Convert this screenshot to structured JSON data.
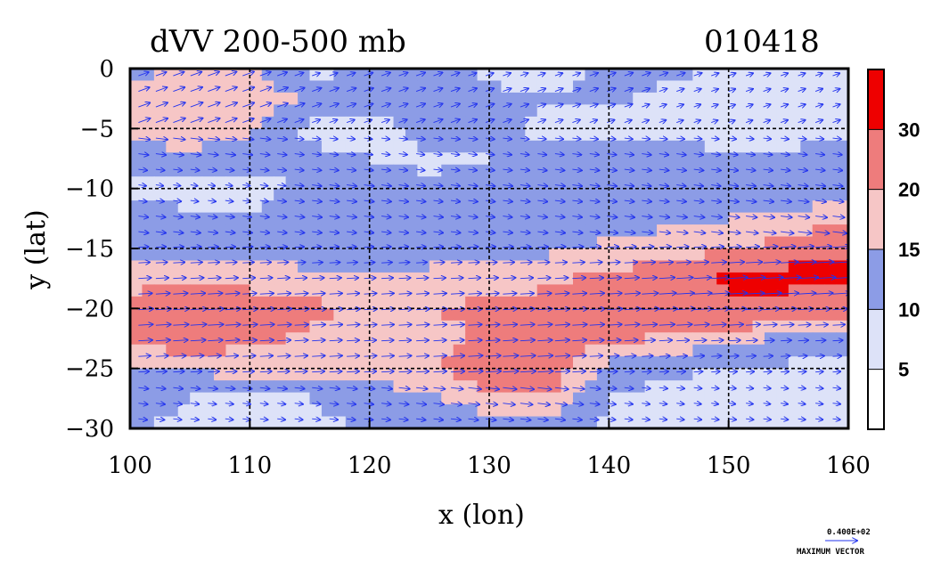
{
  "chart_data": {
    "type": "heatmap",
    "title": "dVV 200-500 mb",
    "date_label": "010418",
    "xlabel": "x (lon)",
    "ylabel": "y (lat)",
    "xlim": [
      100,
      160
    ],
    "ylim": [
      -30,
      0
    ],
    "x_ticks": [
      100,
      110,
      120,
      130,
      140,
      150,
      160
    ],
    "y_ticks": [
      0,
      -5,
      -10,
      -15,
      -20,
      -25,
      -30
    ],
    "x_tick_labels": [
      "100",
      "110",
      "120",
      "130",
      "140",
      "150",
      "160"
    ],
    "y_tick_labels": [
      "0",
      "−5",
      "−10",
      "−15",
      "−20",
      "−25",
      "−30"
    ],
    "grid": true,
    "colorbar": {
      "levels": [
        5,
        10,
        15,
        20,
        30
      ],
      "level_labels": [
        "5",
        "10",
        "15",
        "20",
        "30"
      ],
      "colors": [
        "#ffffff",
        "#dde2f8",
        "#8c9ce6",
        "#f6c6c6",
        "#ee7c7c",
        "#ee0000"
      ]
    },
    "speed_field_rows": [
      {
        "lat": 0,
        "values": [
          13,
          16,
          17,
          8,
          11,
          12,
          9,
          8,
          11,
          12,
          8,
          8,
          7
        ]
      },
      {
        "lat": -2.5,
        "values": [
          17,
          19,
          18,
          14,
          13,
          12,
          11,
          10,
          11,
          8,
          7,
          9,
          8
        ]
      },
      {
        "lat": -5,
        "values": [
          18,
          19,
          16,
          9,
          8,
          12,
          11,
          9,
          8,
          7,
          6,
          8,
          9
        ]
      },
      {
        "lat": -7.5,
        "values": [
          12,
          13,
          12,
          11,
          10,
          9,
          10,
          11,
          12,
          13,
          12,
          11,
          12
        ]
      },
      {
        "lat": -10,
        "values": [
          8,
          6,
          7,
          12,
          13,
          11,
          12,
          13,
          12,
          11,
          12,
          13,
          13
        ]
      },
      {
        "lat": -12.5,
        "values": [
          13,
          12,
          11,
          13,
          12,
          12,
          11,
          12,
          13,
          14,
          15,
          16,
          17
        ]
      },
      {
        "lat": -15,
        "values": [
          13,
          14,
          13,
          11,
          12,
          12,
          13,
          14,
          16,
          17,
          18,
          24,
          28
        ]
      },
      {
        "lat": -17.5,
        "values": [
          18,
          19,
          18,
          17,
          16,
          17,
          18,
          19,
          21,
          25,
          31,
          34,
          33
        ]
      },
      {
        "lat": -20,
        "values": [
          22,
          26,
          23,
          21,
          19,
          20,
          21,
          22,
          24,
          31,
          29,
          24,
          22
        ]
      },
      {
        "lat": -22.5,
        "values": [
          21,
          24,
          21,
          19,
          17,
          18,
          21,
          22,
          21,
          19,
          17,
          14,
          13
        ]
      },
      {
        "lat": -25,
        "values": [
          14,
          16,
          17,
          19,
          18,
          19,
          25,
          24,
          13,
          11,
          10,
          9,
          8
        ]
      },
      {
        "lat": -27.5,
        "values": [
          12,
          10,
          9,
          10,
          12,
          14,
          18,
          19,
          10,
          8,
          6,
          7,
          9
        ]
      },
      {
        "lat": -30,
        "values": [
          10,
          9,
          8,
          9,
          10,
          11,
          12,
          11,
          9,
          8,
          9,
          8,
          7
        ]
      }
    ],
    "max_vector": {
      "value_label": "0.400E+02",
      "caption": "MAXIMUM VECTOR"
    }
  }
}
